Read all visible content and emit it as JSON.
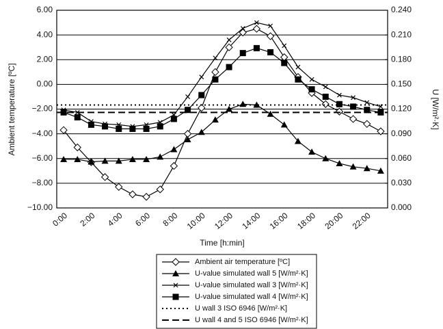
{
  "chart_data": {
    "type": "line",
    "xlabel": "Time [h:min]",
    "ylabel": "Ambient temperature [ºC]",
    "y2label": "U [W/m²·K]",
    "categories": [
      "0:00",
      null,
      "2:00",
      null,
      "4:00",
      null,
      "6:00",
      null,
      "8:00",
      null,
      "10:00",
      null,
      "12:00",
      null,
      "14:00",
      null,
      "16:00",
      null,
      "18:00",
      null,
      "20:00",
      null,
      "22:00",
      null
    ],
    "ylim": [
      -10,
      6
    ],
    "yticks": [
      {
        "value": -10,
        "label": "−10.00"
      },
      {
        "value": -8,
        "label": "−8.00"
      },
      {
        "value": -6,
        "label": "−6.00"
      },
      {
        "value": -4,
        "label": "−4.00"
      },
      {
        "value": -2,
        "label": "−2.00"
      },
      {
        "value": 0,
        "label": "0.00"
      },
      {
        "value": 2,
        "label": "2.00"
      },
      {
        "value": 4,
        "label": "4.00"
      },
      {
        "value": 6,
        "label": "6.00"
      }
    ],
    "y2lim": [
      0,
      0.24
    ],
    "y2ticks": [
      {
        "value": 0,
        "label": "0.000"
      },
      {
        "value": 0.03,
        "label": "0.030"
      },
      {
        "value": 0.06,
        "label": "0.060"
      },
      {
        "value": 0.09,
        "label": "0.090"
      },
      {
        "value": 0.12,
        "label": "0.120"
      },
      {
        "value": 0.15,
        "label": "0.150"
      },
      {
        "value": 0.18,
        "label": "0.180"
      },
      {
        "value": 0.21,
        "label": "0.210"
      },
      {
        "value": 0.24,
        "label": "0.240"
      }
    ],
    "grid": true,
    "series": [
      {
        "name": "Ambient air temperature [ºC]",
        "color": "#000000",
        "marker": "diamond",
        "dash": "solid",
        "values": [
          -3.7,
          -5.1,
          -6.3,
          -7.5,
          -8.3,
          -8.9,
          -9.1,
          -8.5,
          -6.6,
          -4.0,
          -1.9,
          1.0,
          3.0,
          4.2,
          4.5,
          3.9,
          2.2,
          0.6,
          -0.7,
          -1.6,
          -2.2,
          -2.8,
          -3.2,
          -3.8
        ]
      },
      {
        "name": "U-value simulated wall 5 [W/m²·K]",
        "color": "#000000",
        "marker": "triangle",
        "dash": "solid",
        "axis": "y2",
        "values": [
          0.059,
          0.059,
          0.056,
          0.057,
          0.057,
          0.059,
          0.059,
          0.062,
          0.071,
          0.083,
          0.092,
          0.107,
          0.12,
          0.126,
          0.125,
          0.114,
          0.101,
          0.081,
          0.068,
          0.06,
          0.054,
          0.05,
          0.048,
          0.045
        ]
      },
      {
        "name": "U-value simulated wall 3 [W/m²·K]",
        "color": "#000000",
        "marker": "x",
        "dash": "solid",
        "axis": "y2",
        "values": [
          0.119,
          0.116,
          0.105,
          0.102,
          0.101,
          0.099,
          0.101,
          0.104,
          0.113,
          0.135,
          0.159,
          0.182,
          0.204,
          0.218,
          0.225,
          0.221,
          0.197,
          0.171,
          0.156,
          0.147,
          0.137,
          0.134,
          0.128,
          0.123
        ]
      },
      {
        "name": "U-value simulated wall 4 [W/m²·K]",
        "color": "#000000",
        "marker": "square",
        "dash": "solid",
        "axis": "y2",
        "values": [
          0.116,
          0.11,
          0.101,
          0.099,
          0.096,
          0.096,
          0.096,
          0.099,
          0.108,
          0.119,
          0.137,
          0.156,
          0.171,
          0.188,
          0.194,
          0.189,
          0.176,
          0.156,
          0.144,
          0.135,
          0.126,
          0.123,
          0.119,
          0.116
        ]
      },
      {
        "name": "U wall 3 ISO 6946 [W/m²·K]",
        "color": "#000000",
        "marker": "none",
        "dash": "dotted",
        "axis": "y2",
        "value": 0.125
      },
      {
        "name": "U wall 4 and 5 ISO 6946 [W/m²·K]",
        "color": "#000000",
        "marker": "none",
        "dash": "dashed",
        "axis": "y2",
        "value": 0.116
      }
    ]
  }
}
